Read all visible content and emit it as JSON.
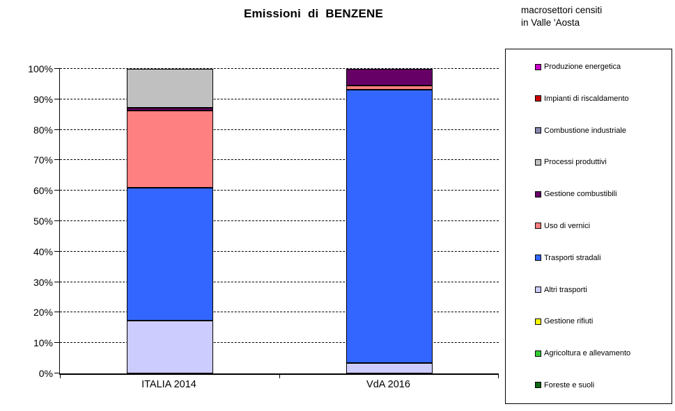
{
  "title": "Emissioni di BENZENE",
  "legend": {
    "title_line1": "macrosettori censiti",
    "title_line2": "in Valle 'Aosta",
    "items": [
      {
        "label": "Produzione energetica",
        "color": "#CC00CC"
      },
      {
        "label": "Impianti di riscaldamento",
        "color": "#CC0000"
      },
      {
        "label": "Combustione industriale",
        "color": "#8585AD"
      },
      {
        "label": "Processi produttivi",
        "color": "#C0C0C0"
      },
      {
        "label": "Gestione combustibili",
        "color": "#660066"
      },
      {
        "label": "Uso di vernici",
        "color": "#FF8080"
      },
      {
        "label": "Trasporti stradali",
        "color": "#3366FF"
      },
      {
        "label": "Altri trasporti",
        "color": "#CCCCFF"
      },
      {
        "label": "Gestione rifiuti",
        "color": "#FFFF00"
      },
      {
        "label": "Agricoltura e allevamento",
        "color": "#33CC33"
      },
      {
        "label": "Foreste e suoli",
        "color": "#116611"
      }
    ]
  },
  "chart_data": {
    "type": "bar",
    "stacked": true,
    "title": "Emissioni di BENZENE",
    "xlabel": "",
    "ylabel": "",
    "ylim": [
      0,
      100
    ],
    "ytick_step": 10,
    "ytick_labels": [
      "0%",
      "10%",
      "20%",
      "30%",
      "40%",
      "50%",
      "60%",
      "70%",
      "80%",
      "90%",
      "100%"
    ],
    "grid": "horizontal-dashed",
    "legend_position": "right",
    "stack_order_note": "bars stack bottom-to-top in reverse series order",
    "categories": [
      "ITALIA 2014",
      "VdA 2016"
    ],
    "series": [
      {
        "name": "Produzione energetica",
        "color": "#CC00CC",
        "values": [
          0,
          0
        ]
      },
      {
        "name": "Impianti di riscaldamento",
        "color": "#CC0000",
        "values": [
          0,
          0
        ]
      },
      {
        "name": "Combustione industriale",
        "color": "#8585AD",
        "values": [
          0,
          0
        ]
      },
      {
        "name": "Processi produttivi",
        "color": "#C0C0C0",
        "values": [
          12.7,
          0
        ]
      },
      {
        "name": "Gestione combustibili",
        "color": "#660066",
        "values": [
          1.0,
          5.5
        ]
      },
      {
        "name": "Uso di vernici",
        "color": "#FF8080",
        "values": [
          25.3,
          1.3
        ]
      },
      {
        "name": "Trasporti stradali",
        "color": "#3366FF",
        "values": [
          43.6,
          89.7
        ]
      },
      {
        "name": "Altri trasporti",
        "color": "#CCCCFF",
        "values": [
          17.4,
          3.5
        ]
      },
      {
        "name": "Gestione rifiuti",
        "color": "#FFFF00",
        "values": [
          0,
          0
        ]
      },
      {
        "name": "Agricoltura e allevamento",
        "color": "#33CC33",
        "values": [
          0,
          0
        ]
      },
      {
        "name": "Foreste e suoli",
        "color": "#116611",
        "values": [
          0,
          0
        ]
      }
    ]
  }
}
